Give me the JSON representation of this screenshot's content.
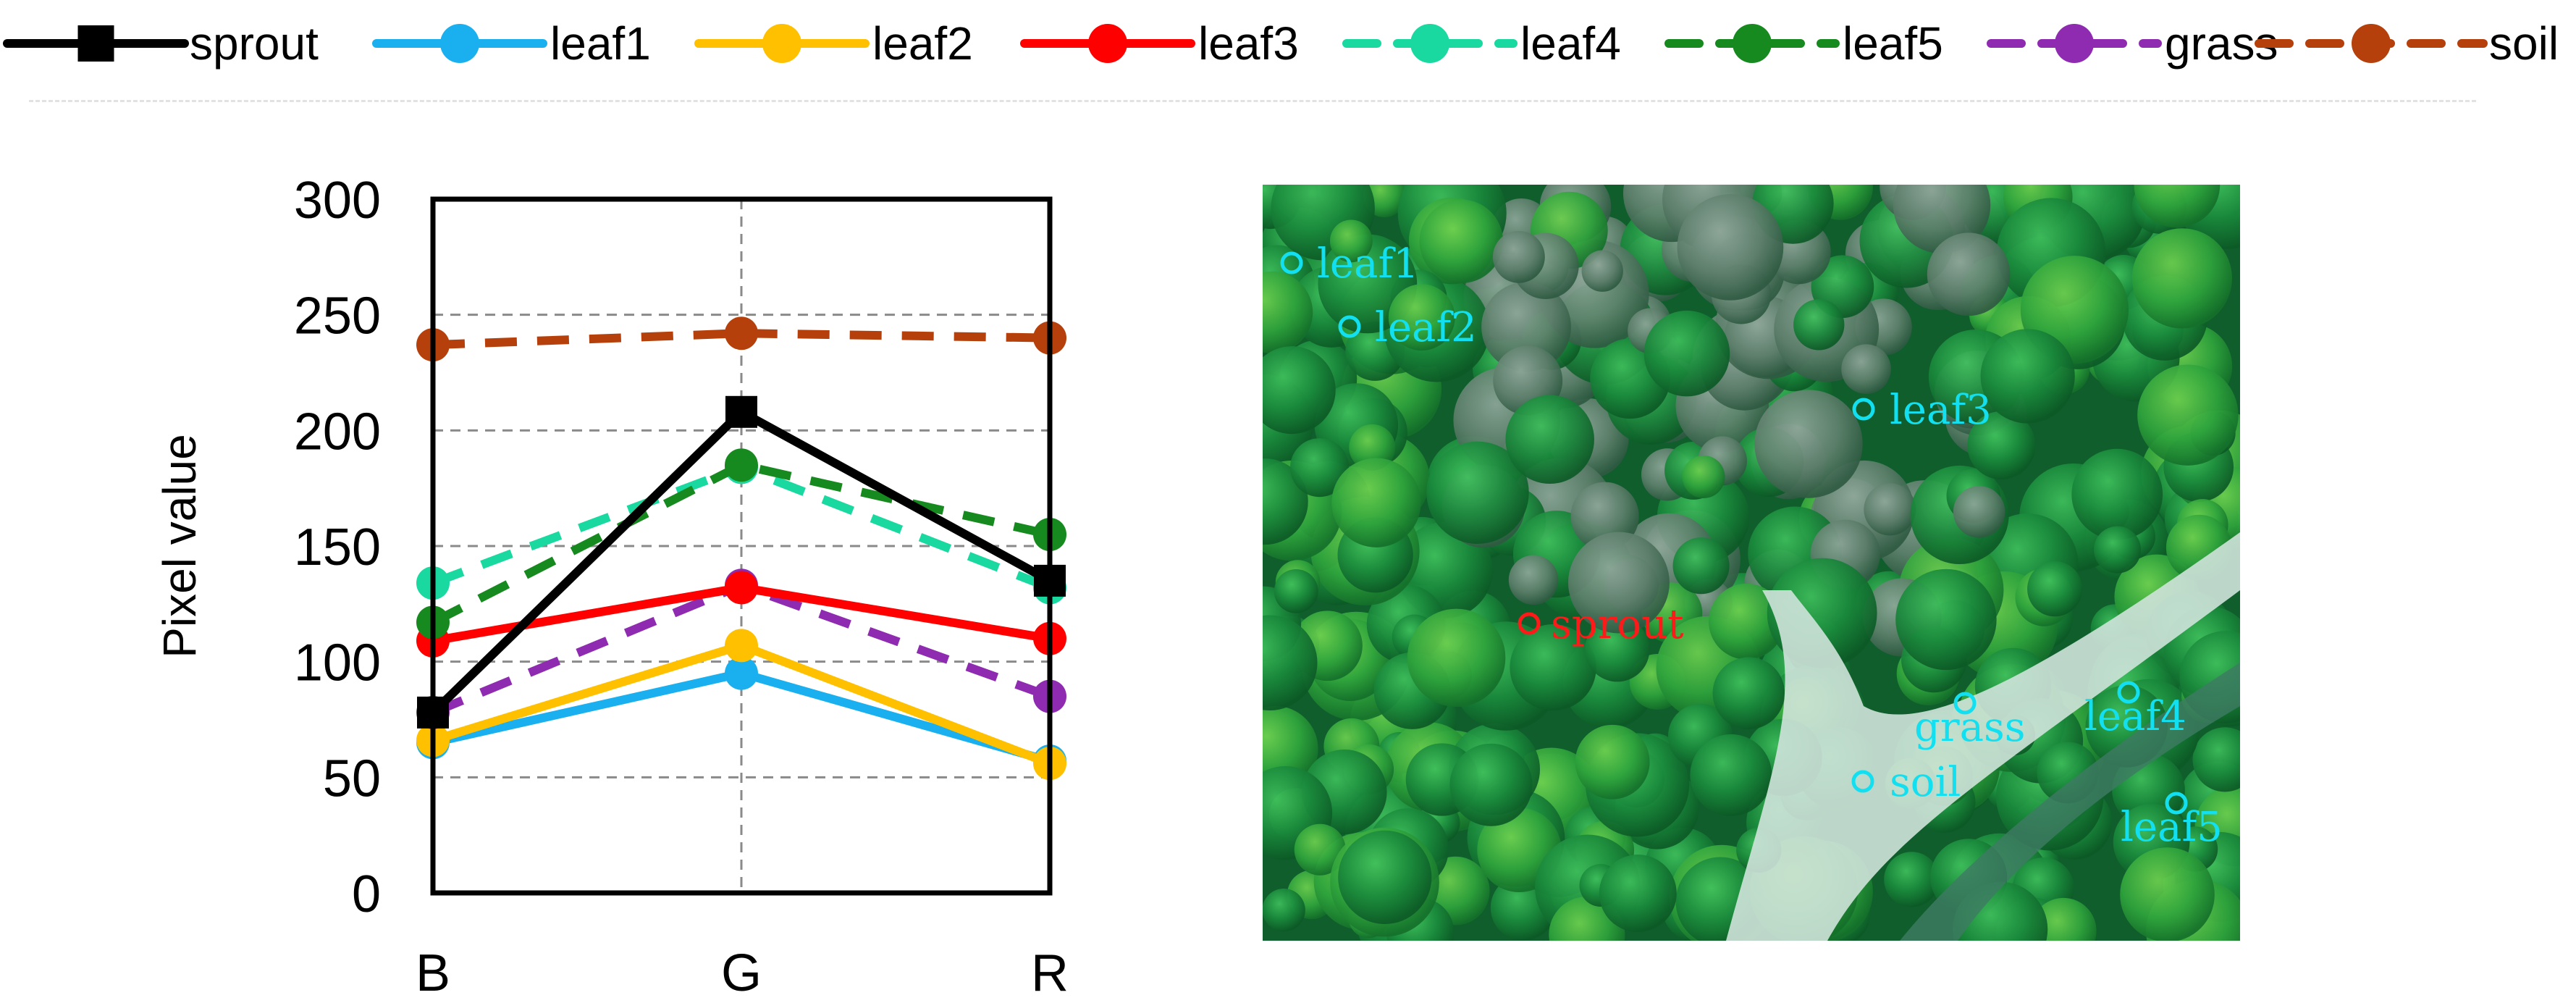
{
  "chart_data": {
    "type": "line",
    "categories": [
      "B",
      "G",
      "R"
    ],
    "ylabel": "Pixel value",
    "xlabel": "",
    "ylim": [
      0,
      300
    ],
    "yticks": [
      0,
      50,
      100,
      150,
      200,
      250,
      300
    ],
    "grid": true,
    "legend_position": "top",
    "series": [
      {
        "name": "sprout",
        "values": [
          78,
          208,
          135
        ],
        "color": "#000000",
        "dash": false,
        "marker": "square"
      },
      {
        "name": "leaf1",
        "values": [
          65,
          95,
          57
        ],
        "color": "#1ab0f0",
        "dash": false,
        "marker": "circle"
      },
      {
        "name": "leaf2",
        "values": [
          66,
          107,
          56
        ],
        "color": "#ffc000",
        "dash": false,
        "marker": "circle"
      },
      {
        "name": "leaf3",
        "values": [
          109,
          132,
          110
        ],
        "color": "#ff0000",
        "dash": false,
        "marker": "circle"
      },
      {
        "name": "leaf4",
        "values": [
          134,
          184,
          132
        ],
        "color": "#19d9a0",
        "dash": true,
        "marker": "circle"
      },
      {
        "name": "leaf5",
        "values": [
          117,
          185,
          155
        ],
        "color": "#168a1e",
        "dash": true,
        "marker": "circle"
      },
      {
        "name": "grass",
        "values": [
          78,
          133,
          85
        ],
        "color": "#8e2bb0",
        "dash": true,
        "marker": "circle"
      },
      {
        "name": "soil",
        "values": [
          237,
          242,
          240
        ],
        "color": "#b5400b",
        "dash": true,
        "marker": "circle"
      }
    ]
  },
  "photo": {
    "labels": [
      {
        "text": "leaf1",
        "color": "#12e0f0"
      },
      {
        "text": "leaf2",
        "color": "#12e0f0"
      },
      {
        "text": "leaf3",
        "color": "#12e0f0"
      },
      {
        "text": "sprout",
        "color": "#ff1a1a"
      },
      {
        "text": "grass",
        "color": "#12e0f0"
      },
      {
        "text": "leaf4",
        "color": "#12e0f0"
      },
      {
        "text": "soil",
        "color": "#12e0f0"
      },
      {
        "text": "leaf5",
        "color": "#12e0f0"
      }
    ]
  }
}
